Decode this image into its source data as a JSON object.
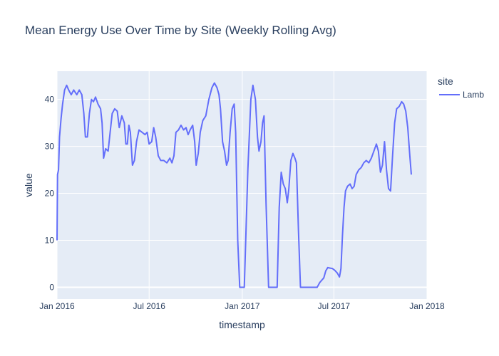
{
  "chart_data": {
    "type": "line",
    "title": "Mean Energy Use Over Time by Site (Weekly Rolling Avg)",
    "xlabel": "timestamp",
    "ylabel": "value",
    "legend_title": "site",
    "legend_position": "right",
    "grid": true,
    "colors": {
      "plot_bg": "#e5ecf6",
      "grid": "#ffffff",
      "series": "#636efa"
    },
    "xlim": [
      "2016-01-01",
      "2018-01-01"
    ],
    "ylim": [
      -2.5,
      46
    ],
    "x_ticks": [
      {
        "date": "2016-01-01",
        "label": "Jan 2016"
      },
      {
        "date": "2016-07-01",
        "label": "Jul 2016"
      },
      {
        "date": "2017-01-01",
        "label": "Jan 2017"
      },
      {
        "date": "2017-07-01",
        "label": "Jul 2017"
      },
      {
        "date": "2018-01-01",
        "label": "Jan 2018"
      }
    ],
    "y_ticks": [
      0,
      10,
      20,
      30,
      40
    ],
    "series": [
      {
        "name": "Lamb",
        "points": [
          [
            "2016-01-01",
            10
          ],
          [
            "2016-01-02",
            24
          ],
          [
            "2016-01-04",
            25
          ],
          [
            "2016-01-06",
            32
          ],
          [
            "2016-01-09",
            36
          ],
          [
            "2016-01-12",
            39
          ],
          [
            "2016-01-16",
            42
          ],
          [
            "2016-01-20",
            43
          ],
          [
            "2016-01-24",
            42
          ],
          [
            "2016-01-29",
            41
          ],
          [
            "2016-02-03",
            42
          ],
          [
            "2016-02-09",
            41
          ],
          [
            "2016-02-14",
            42
          ],
          [
            "2016-02-19",
            41
          ],
          [
            "2016-02-23",
            37
          ],
          [
            "2016-02-26",
            32
          ],
          [
            "2016-03-01",
            32
          ],
          [
            "2016-03-05",
            37
          ],
          [
            "2016-03-09",
            40
          ],
          [
            "2016-03-13",
            39.5
          ],
          [
            "2016-03-17",
            40.5
          ],
          [
            "2016-03-22",
            39
          ],
          [
            "2016-03-27",
            38
          ],
          [
            "2016-03-30",
            35
          ],
          [
            "2016-04-02",
            27.5
          ],
          [
            "2016-04-06",
            29.5
          ],
          [
            "2016-04-11",
            29
          ],
          [
            "2016-04-15",
            33
          ],
          [
            "2016-04-19",
            37
          ],
          [
            "2016-04-24",
            38
          ],
          [
            "2016-04-29",
            37.5
          ],
          [
            "2016-05-03",
            34
          ],
          [
            "2016-05-08",
            36.5
          ],
          [
            "2016-05-13",
            35
          ],
          [
            "2016-05-16",
            30.5
          ],
          [
            "2016-05-19",
            30.5
          ],
          [
            "2016-05-22",
            34.5
          ],
          [
            "2016-05-25",
            33
          ],
          [
            "2016-05-29",
            26
          ],
          [
            "2016-06-02",
            27
          ],
          [
            "2016-06-06",
            31
          ],
          [
            "2016-06-11",
            33.5
          ],
          [
            "2016-06-17",
            33
          ],
          [
            "2016-06-23",
            32.5
          ],
          [
            "2016-06-27",
            33
          ],
          [
            "2016-07-01",
            30.5
          ],
          [
            "2016-07-06",
            31
          ],
          [
            "2016-07-10",
            34
          ],
          [
            "2016-07-14",
            32
          ],
          [
            "2016-07-19",
            28
          ],
          [
            "2016-07-24",
            27
          ],
          [
            "2016-07-30",
            27
          ],
          [
            "2016-08-05",
            26.5
          ],
          [
            "2016-08-11",
            27.5
          ],
          [
            "2016-08-15",
            26.5
          ],
          [
            "2016-08-19",
            28
          ],
          [
            "2016-08-23",
            33
          ],
          [
            "2016-08-28",
            33.5
          ],
          [
            "2016-09-02",
            34.5
          ],
          [
            "2016-09-07",
            33.5
          ],
          [
            "2016-09-12",
            34
          ],
          [
            "2016-09-16",
            32.5
          ],
          [
            "2016-09-20",
            33.5
          ],
          [
            "2016-09-25",
            34.5
          ],
          [
            "2016-09-29",
            31
          ],
          [
            "2016-10-02",
            26
          ],
          [
            "2016-10-06",
            28.5
          ],
          [
            "2016-10-10",
            33
          ],
          [
            "2016-10-15",
            35.5
          ],
          [
            "2016-10-21",
            36.5
          ],
          [
            "2016-10-27",
            40
          ],
          [
            "2016-11-02",
            42.5
          ],
          [
            "2016-11-07",
            43.5
          ],
          [
            "2016-11-12",
            42.5
          ],
          [
            "2016-11-16",
            41
          ],
          [
            "2016-11-19",
            38
          ],
          [
            "2016-11-23",
            31
          ],
          [
            "2016-11-27",
            29
          ],
          [
            "2016-12-01",
            26
          ],
          [
            "2016-12-04",
            27
          ],
          [
            "2016-12-08",
            33
          ],
          [
            "2016-12-12",
            38
          ],
          [
            "2016-12-16",
            39
          ],
          [
            "2016-12-19",
            33
          ],
          [
            "2016-12-23",
            10
          ],
          [
            "2016-12-27",
            0
          ],
          [
            "2017-01-05",
            0
          ],
          [
            "2017-01-12",
            25
          ],
          [
            "2017-01-18",
            40
          ],
          [
            "2017-01-22",
            43
          ],
          [
            "2017-01-27",
            40
          ],
          [
            "2017-01-31",
            32
          ],
          [
            "2017-02-03",
            29
          ],
          [
            "2017-02-07",
            31
          ],
          [
            "2017-02-10",
            35
          ],
          [
            "2017-02-13",
            36.5
          ],
          [
            "2017-02-17",
            18
          ],
          [
            "2017-02-22",
            0
          ],
          [
            "2017-03-07",
            0
          ],
          [
            "2017-03-11",
            0
          ],
          [
            "2017-03-15",
            17
          ],
          [
            "2017-03-19",
            24.5
          ],
          [
            "2017-03-23",
            22
          ],
          [
            "2017-03-27",
            21
          ],
          [
            "2017-03-31",
            18
          ],
          [
            "2017-04-03",
            21
          ],
          [
            "2017-04-07",
            27
          ],
          [
            "2017-04-11",
            28.5
          ],
          [
            "2017-04-15",
            27.5
          ],
          [
            "2017-04-18",
            26.5
          ],
          [
            "2017-04-22",
            12
          ],
          [
            "2017-04-26",
            0
          ],
          [
            "2017-05-05",
            0
          ],
          [
            "2017-05-15",
            0
          ],
          [
            "2017-05-25",
            0
          ],
          [
            "2017-05-29",
            0
          ],
          [
            "2017-06-03",
            1
          ],
          [
            "2017-06-07",
            1.5
          ],
          [
            "2017-06-11",
            2
          ],
          [
            "2017-06-15",
            3.5
          ],
          [
            "2017-06-19",
            4.2
          ],
          [
            "2017-06-23",
            4.1
          ],
          [
            "2017-06-28",
            4.0
          ],
          [
            "2017-07-03",
            3.6
          ],
          [
            "2017-07-08",
            3.0
          ],
          [
            "2017-07-12",
            2.2
          ],
          [
            "2017-07-15",
            4
          ],
          [
            "2017-07-18",
            11
          ],
          [
            "2017-07-21",
            17
          ],
          [
            "2017-07-24",
            20.5
          ],
          [
            "2017-07-28",
            21.5
          ],
          [
            "2017-08-02",
            22
          ],
          [
            "2017-08-06",
            21
          ],
          [
            "2017-08-10",
            21.5
          ],
          [
            "2017-08-14",
            24
          ],
          [
            "2017-08-19",
            25
          ],
          [
            "2017-08-24",
            25.5
          ],
          [
            "2017-08-29",
            26.5
          ],
          [
            "2017-09-03",
            27
          ],
          [
            "2017-09-08",
            26.5
          ],
          [
            "2017-09-13",
            27.5
          ],
          [
            "2017-09-18",
            29
          ],
          [
            "2017-09-23",
            30.5
          ],
          [
            "2017-09-27",
            29
          ],
          [
            "2017-10-01",
            24.5
          ],
          [
            "2017-10-05",
            26
          ],
          [
            "2017-10-09",
            31
          ],
          [
            "2017-10-13",
            25
          ],
          [
            "2017-10-17",
            21
          ],
          [
            "2017-10-21",
            20.5
          ],
          [
            "2017-10-25",
            28
          ],
          [
            "2017-10-29",
            35
          ],
          [
            "2017-11-02",
            38
          ],
          [
            "2017-11-07",
            38.5
          ],
          [
            "2017-11-12",
            39.5
          ],
          [
            "2017-11-16",
            39
          ],
          [
            "2017-11-20",
            37.5
          ],
          [
            "2017-11-24",
            34
          ],
          [
            "2017-11-28",
            28
          ],
          [
            "2017-12-01",
            24
          ]
        ]
      }
    ]
  }
}
